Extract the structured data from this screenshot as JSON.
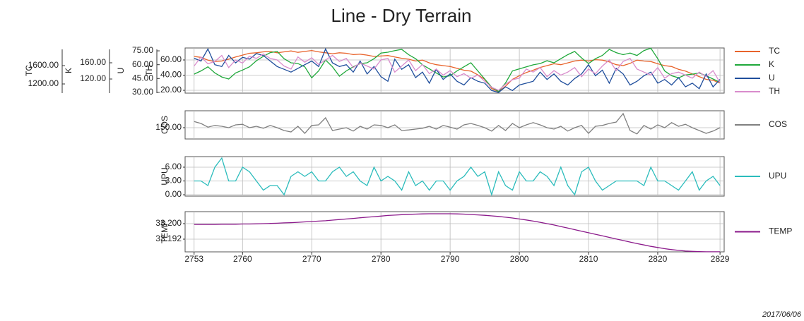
{
  "chart_data": {
    "type": "line",
    "title": "Line - Dry Terrain",
    "date": "2017/06/06",
    "x": [
      2753,
      2754,
      2755,
      2756,
      2757,
      2758,
      2759,
      2760,
      2761,
      2762,
      2763,
      2764,
      2765,
      2766,
      2767,
      2768,
      2769,
      2770,
      2771,
      2772,
      2773,
      2774,
      2775,
      2776,
      2777,
      2778,
      2779,
      2780,
      2781,
      2782,
      2783,
      2784,
      2785,
      2786,
      2787,
      2788,
      2789,
      2790,
      2791,
      2792,
      2793,
      2794,
      2795,
      2796,
      2797,
      2798,
      2799,
      2800,
      2801,
      2802,
      2803,
      2804,
      2805,
      2806,
      2807,
      2808,
      2809,
      2810,
      2811,
      2812,
      2813,
      2814,
      2815,
      2816,
      2817,
      2818,
      2819,
      2820,
      2821,
      2822,
      2823,
      2824,
      2825,
      2826,
      2827,
      2828,
      2829
    ],
    "xlim": [
      2751.7,
      2829.6
    ],
    "xticks": [
      2753,
      2760,
      2770,
      2780,
      2790,
      2800,
      2810,
      2820,
      2829
    ],
    "grid": true,
    "panels": [
      {
        "axes": [
          {
            "label": "TH",
            "ylim": [
              16.3,
              75.8
            ],
            "yticks": [
              {
                "value": 20,
                "label": "20.00"
              },
              {
                "value": 40,
                "label": "40.00"
              },
              {
                "value": 60,
                "label": "60.00"
              }
            ]
          },
          {
            "label": "U",
            "ylim": [
              29.2,
              78.1
            ],
            "yticks": [
              {
                "value": 30,
                "label": "30.00"
              },
              {
                "value": 45,
                "label": "45.00"
              },
              {
                "value": 60,
                "label": "60.00"
              },
              {
                "value": 75,
                "label": "75.00"
              }
            ]
          },
          {
            "label": "K",
            "ylim": [
              85.2,
              196.5
            ],
            "yticks": [
              {
                "value": 120,
                "label": "120.00"
              },
              {
                "value": 160,
                "label": "160.00"
              }
            ]
          },
          {
            "label": "TC",
            "ylim": [
              1000,
              1985
            ],
            "yticks": [
              {
                "value": 1200,
                "label": "1200.00"
              },
              {
                "value": 1600,
                "label": "1600.00"
              }
            ]
          }
        ],
        "series": [
          {
            "name": "TC",
            "color": "#e8632b",
            "axis": 3,
            "values": [
              1800,
              1780,
              1720,
              1690,
              1700,
              1740,
              1790,
              1830,
              1870,
              1880,
              1900,
              1910,
              1880,
              1900,
              1920,
              1890,
              1910,
              1930,
              1900,
              1880,
              1860,
              1880,
              1870,
              1840,
              1850,
              1830,
              1800,
              1810,
              1820,
              1790,
              1760,
              1740,
              1700,
              1720,
              1660,
              1620,
              1600,
              1580,
              1540,
              1500,
              1480,
              1400,
              1300,
              1100,
              1030,
              1150,
              1300,
              1380,
              1450,
              1500,
              1560,
              1600,
              1640,
              1620,
              1660,
              1700,
              1720,
              1700,
              1730,
              1720,
              1680,
              1620,
              1600,
              1650,
              1720,
              1700,
              1690,
              1640,
              1600,
              1580,
              1520,
              1480,
              1420,
              1360,
              1300,
              1280,
              1220
            ]
          },
          {
            "name": "K",
            "color": "#1fa83a",
            "axis": 2,
            "values": [
              132,
              140,
              150,
              135,
              125,
              120,
              135,
              142,
              150,
              165,
              176,
              185,
              188,
              170,
              160,
              158,
              150,
              123,
              140,
              167,
              150,
              127,
              140,
              150,
              158,
              160,
              170,
              184,
              186,
              190,
              193,
              180,
              170,
              155,
              145,
              135,
              125,
              128,
              140,
              150,
              160,
              140,
              120,
              100,
              89,
              110,
              140,
              145,
              150,
              155,
              158,
              165,
              160,
              170,
              180,
              188,
              172,
              158,
              170,
              178,
              193,
              185,
              180,
              184,
              178,
              190,
              196,
              170,
              140,
              128,
              123,
              130,
              132,
              135,
              128,
              120,
              112
            ]
          },
          {
            "name": "U",
            "color": "#1f4e9c",
            "axis": 1,
            "values": [
              67,
              64,
              77,
              60,
              58,
              70,
              62,
              68,
              66,
              72,
              70,
              64,
              58,
              55,
              52,
              56,
              60,
              64,
              58,
              77,
              62,
              58,
              60,
              52,
              64,
              50,
              58,
              47,
              42,
              66,
              55,
              60,
              46,
              52,
              40,
              55,
              44,
              50,
              42,
              38,
              46,
              42,
              40,
              32,
              30,
              36,
              32,
              38,
              40,
              42,
              52,
              44,
              50,
              42,
              38,
              45,
              50,
              60,
              48,
              54,
              40,
              56,
              50,
              38,
              42,
              48,
              52,
              40,
              44,
              38,
              46,
              36,
              40,
              34,
              50,
              36,
              44
            ]
          },
          {
            "name": "TH",
            "color": "#d98ccc",
            "axis": 0,
            "values": [
              52,
              64,
              55,
              58,
              66,
              50,
              60,
              56,
              65,
              62,
              68,
              62,
              60,
              52,
              48,
              64,
              57,
              63,
              54,
              60,
              66,
              58,
              62,
              50,
              56,
              52,
              48,
              60,
              62,
              44,
              52,
              60,
              46,
              54,
              42,
              48,
              40,
              46,
              38,
              42,
              36,
              40,
              32,
              24,
              20,
              28,
              34,
              36,
              48,
              44,
              50,
              38,
              46,
              40,
              44,
              50,
              38,
              48,
              42,
              52,
              60,
              46,
              58,
              62,
              48,
              44,
              40,
              50,
              36,
              42,
              44,
              40,
              36,
              44,
              38,
              46,
              30
            ]
          }
        ]
      },
      {
        "axes": [
          {
            "label": "COS",
            "ylim": [
              110,
              210
            ],
            "yticks": [
              {
                "value": 150,
                "label": "150.00"
              }
            ]
          }
        ],
        "series": [
          {
            "name": "COS",
            "color": "#808080",
            "axis": 0,
            "values": [
              172,
              165,
              152,
              158,
              155,
              150,
              160,
              162,
              150,
              155,
              148,
              158,
              150,
              140,
              135,
              155,
              130,
              158,
              160,
              185,
              140,
              145,
              150,
              138,
              155,
              145,
              160,
              158,
              150,
              160,
              140,
              142,
              145,
              148,
              155,
              145,
              158,
              152,
              145,
              160,
              165,
              158,
              150,
              138,
              158,
              140,
              165,
              150,
              160,
              168,
              160,
              150,
              145,
              155,
              138,
              150,
              158,
              130,
              155,
              158,
              165,
              170,
              200,
              140,
              128,
              158,
              145,
              160,
              150,
              168,
              155,
              162,
              150,
              140,
              130,
              138,
              150
            ]
          }
        ]
      },
      {
        "axes": [
          {
            "label": "UPU",
            "ylim": [
              -0.3,
              8.3
            ],
            "yticks": [
              {
                "value": 0,
                "label": "0.00"
              },
              {
                "value": 3,
                "label": "3.00"
              },
              {
                "value": 6,
                "label": "6.00"
              }
            ]
          }
        ],
        "series": [
          {
            "name": "UPU",
            "color": "#2bbcbc",
            "axis": 0,
            "values": [
              3,
              3,
              2,
              6,
              8,
              3,
              3,
              6,
              5,
              3,
              1,
              2,
              2,
              0,
              4,
              5,
              4,
              5,
              3,
              3,
              5,
              6,
              4,
              5,
              3,
              2,
              6,
              3,
              4,
              3,
              1,
              5,
              2,
              3,
              1,
              3,
              3,
              1,
              3,
              4,
              6,
              4,
              5,
              0,
              5,
              2,
              1,
              5,
              3,
              3,
              5,
              4,
              2,
              6,
              2,
              0,
              5,
              6,
              3,
              1,
              2,
              3,
              3,
              3,
              3,
              2,
              6,
              3,
              3,
              2,
              1,
              3,
              5,
              1,
              3,
              4,
              2
            ]
          }
        ]
      },
      {
        "axes": [
          {
            "label": "TEMP",
            "ylim": [
              33.18545,
              33.20618
            ],
            "yticks": [
              33.192,
              {
                "value": 33.2,
                "label": "33.200"
              }
            ]
          }
        ],
        "series": [
          {
            "name": "TEMP",
            "color": "#8b1a8b",
            "axis": 0,
            "values": [
              33.1996,
              33.1996,
              33.1996,
              33.1996,
              33.1997,
              33.1997,
              33.1997,
              33.1998,
              33.1998,
              33.1999,
              33.2,
              33.2001,
              33.2002,
              33.2004,
              33.2005,
              33.2007,
              33.2009,
              33.2011,
              33.2013,
              33.2015,
              33.2018,
              33.2021,
              33.2024,
              33.2027,
              33.203,
              33.2033,
              33.2036,
              33.2039,
              33.2042,
              33.2044,
              33.2046,
              33.2048,
              33.2049,
              33.205,
              33.2051,
              33.2051,
              33.2051,
              33.2051,
              33.205,
              33.2049,
              33.2047,
              33.2045,
              33.2043,
              33.204,
              33.2037,
              33.2033,
              33.2029,
              33.2024,
              33.2019,
              33.2013,
              33.2007,
              33.2,
              33.1993,
              33.1985,
              33.1977,
              33.1969,
              33.1961,
              33.1953,
              33.1945,
              33.1937,
              33.1929,
              33.1921,
              33.1913,
              33.1905,
              33.1897,
              33.189,
              33.1883,
              33.1877,
              33.1871,
              33.1866,
              33.1862,
              33.1859,
              33.1857,
              33.1856,
              33.1855,
              33.1855,
              33.1855
            ]
          }
        ]
      }
    ]
  }
}
